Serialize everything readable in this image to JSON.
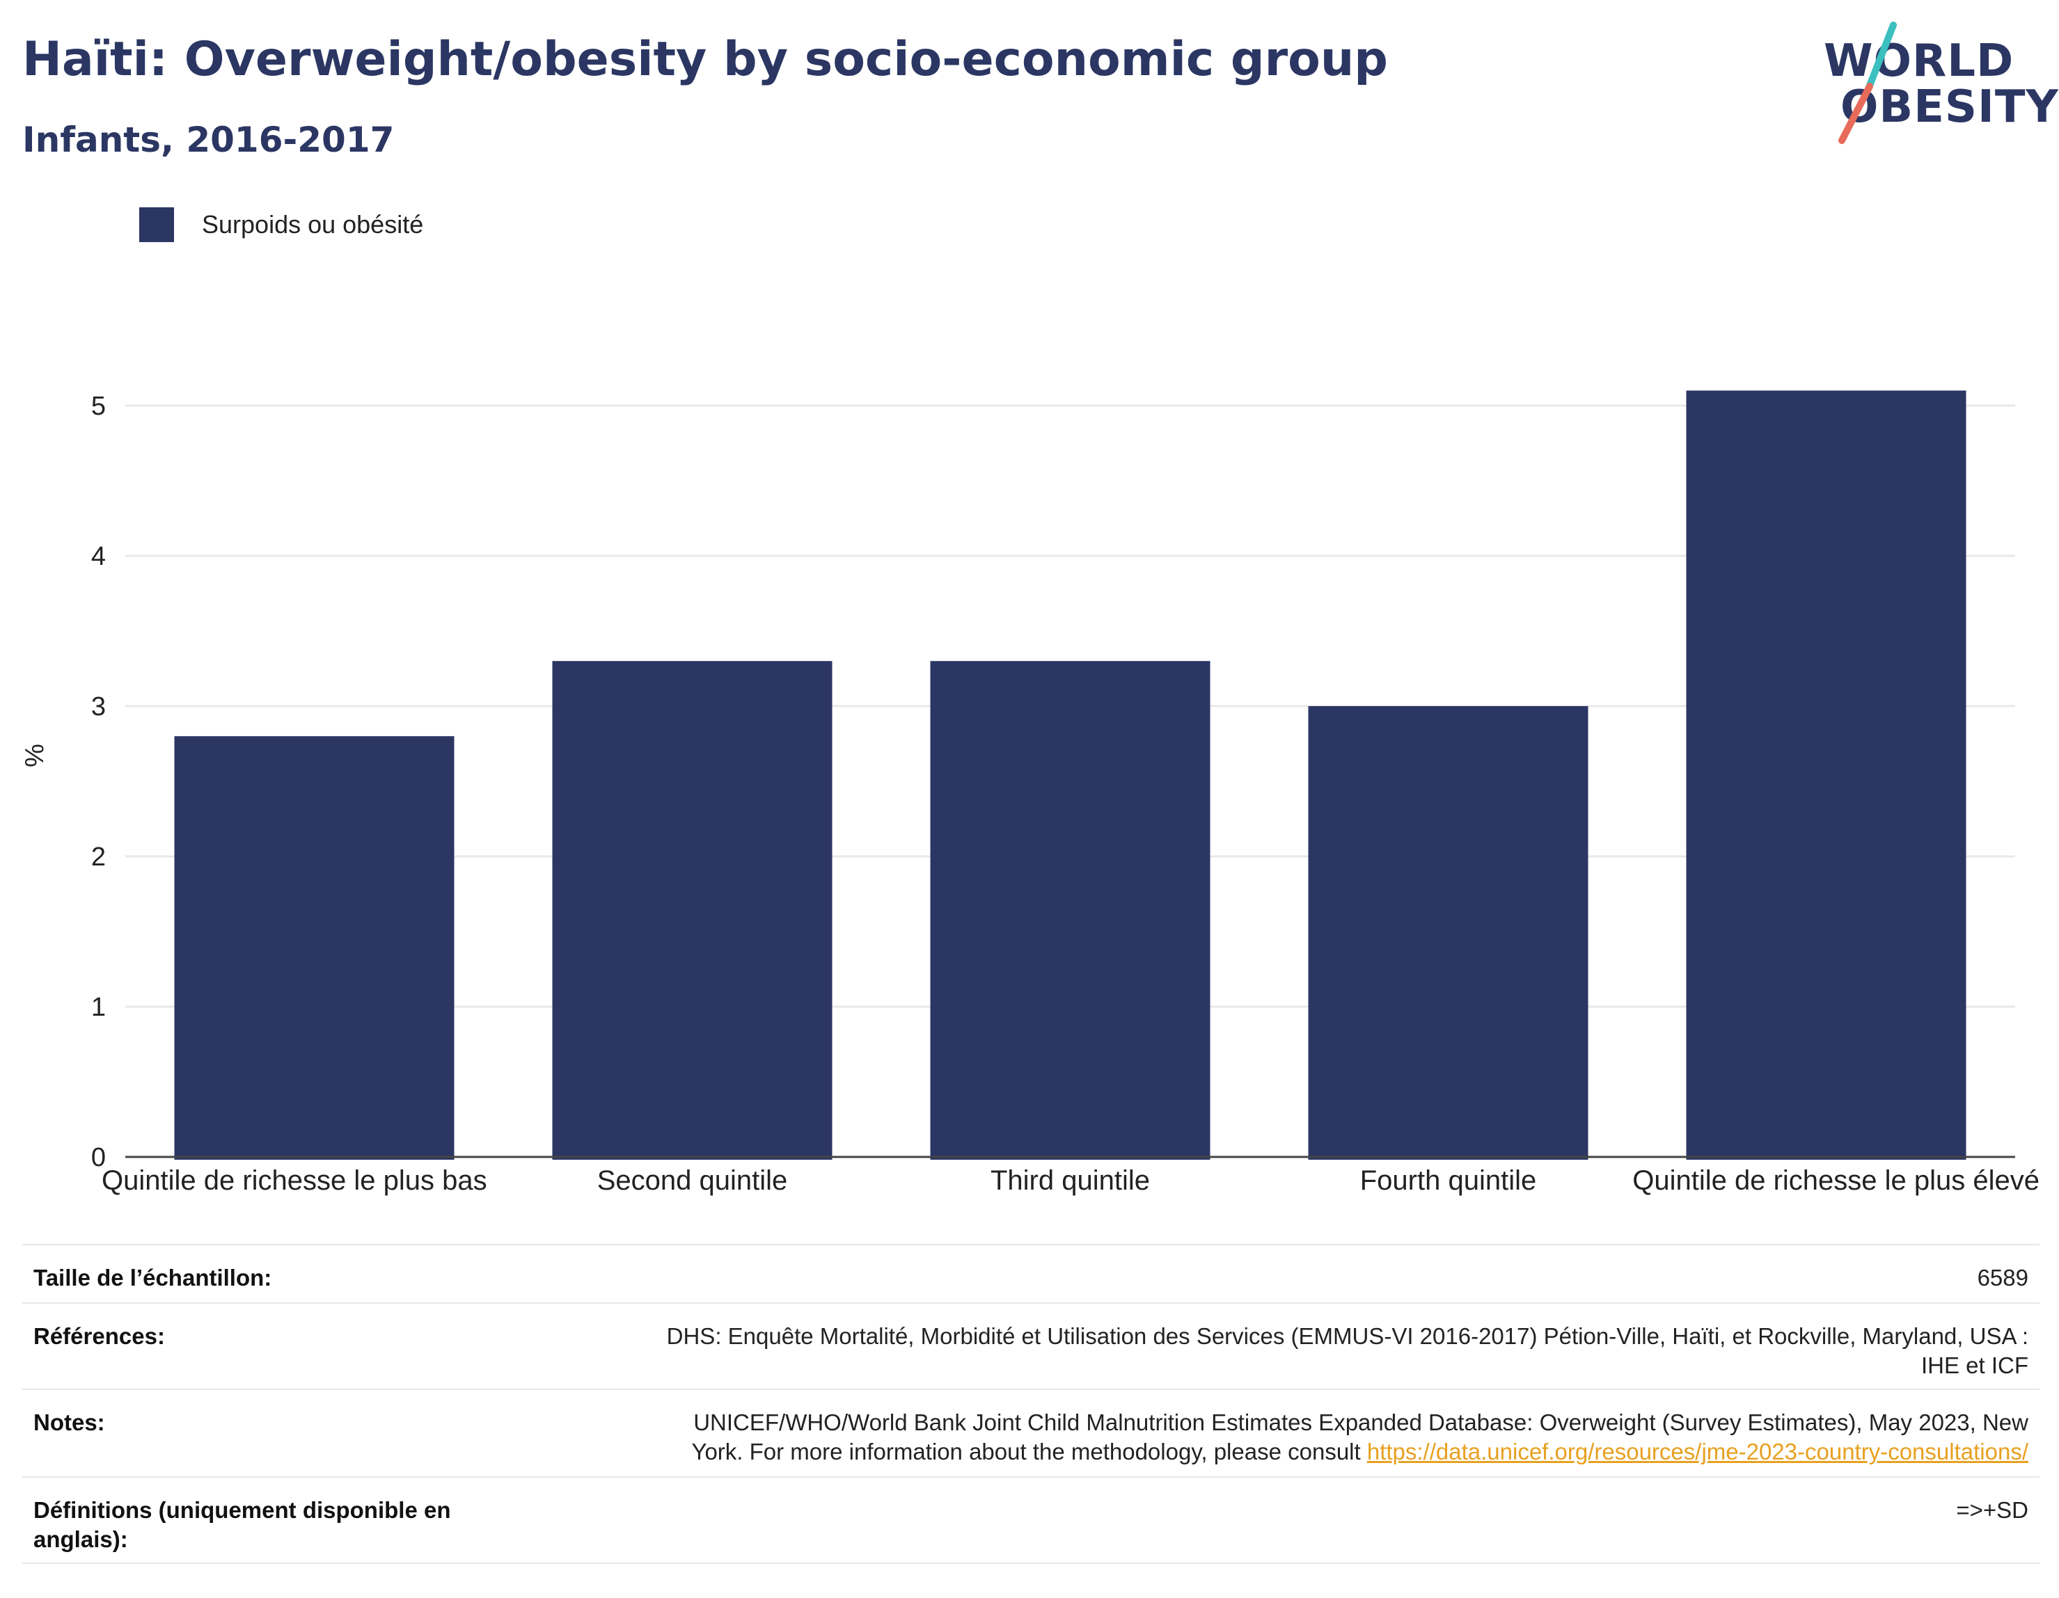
{
  "header": {
    "title": "Haïti: Overweight/obesity by socio-economic group",
    "subtitle": "Infants, 2016-2017"
  },
  "logo": {
    "line1": "WORLD",
    "line2": "OBESITY",
    "colors": {
      "text": "#2b3663",
      "slash_teal": "#3cbfbf",
      "slash_coral": "#e86a5a"
    }
  },
  "colors": {
    "bar": "#2b3663",
    "title": "#2b3663",
    "gridline": "#e8e8e8",
    "axis_line": "#444444",
    "link": "#e8a020"
  },
  "chart_data": {
    "type": "bar",
    "categories": [
      "Quintile de richesse le plus bas",
      "Second quintile",
      "Third quintile",
      "Fourth quintile",
      "Quintile de richesse le plus élevé"
    ],
    "series": [
      {
        "name": "Surpoids ou obésité",
        "values": [
          2.8,
          3.3,
          3.3,
          3.0,
          5.1
        ]
      }
    ],
    "title": "Haïti: Overweight/obesity by socio-economic group",
    "subtitle": "Infants, 2016-2017",
    "xlabel": "",
    "ylabel": "%",
    "ylim": [
      0,
      5.5
    ],
    "yticks": [
      0,
      1,
      2,
      3,
      4,
      5
    ],
    "grid": true,
    "legend_position": "top-left"
  },
  "info": {
    "sample_size": {
      "label": "Taille de l’échantillon:",
      "value": "6589"
    },
    "references": {
      "label": "Références:",
      "line1": "DHS: Enquête Mortalité, Morbidité et Utilisation des Services (EMMUS-VI 2016-2017) Pétion-Ville, Haïti, et Rockville, Maryland, USA :",
      "line2": "IHE et ICF"
    },
    "notes": {
      "label": "Notes:",
      "line1": "UNICEF/WHO/World Bank Joint Child Malnutrition Estimates Expanded Database: Overweight (Survey Estimates), May 2023, New",
      "line2_prefix": "York. For more information about the methodology, please consult ",
      "link": "https://data.unicef.org/resources/jme-2023-country-consultations/"
    },
    "definitions": {
      "label": "Définitions (uniquement disponible en anglais):",
      "value": "=>+SD"
    }
  }
}
